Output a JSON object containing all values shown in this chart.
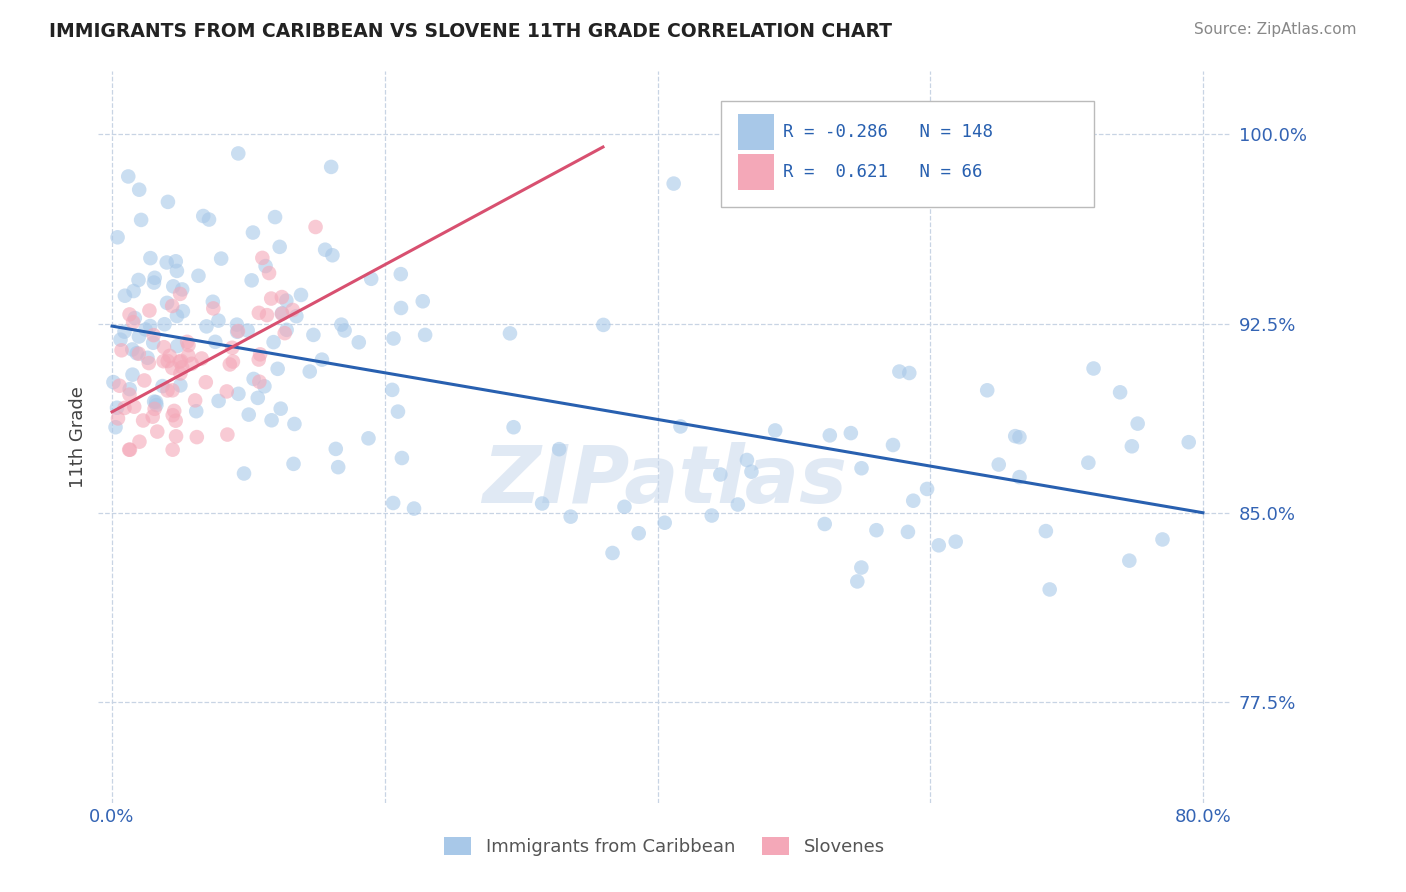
{
  "title": "IMMIGRANTS FROM CARIBBEAN VS SLOVENE 11TH GRADE CORRELATION CHART",
  "source": "Source: ZipAtlas.com",
  "ylabel": "11th Grade",
  "ytick_labels": [
    "100.0%",
    "92.5%",
    "85.0%",
    "77.5%"
  ],
  "ytick_values": [
    1.0,
    0.925,
    0.85,
    0.775
  ],
  "xtick_labels": [
    "0.0%",
    "",
    "",
    "",
    "80.0%"
  ],
  "xtick_values": [
    0.0,
    0.2,
    0.4,
    0.6,
    0.8
  ],
  "xlim": [
    -0.01,
    0.82
  ],
  "ylim": [
    0.735,
    1.025
  ],
  "blue_R": -0.286,
  "blue_N": 148,
  "pink_R": 0.621,
  "pink_N": 66,
  "blue_color": "#a8c8e8",
  "pink_color": "#f4a8b8",
  "blue_line_color": "#2860b0",
  "pink_line_color": "#d85070",
  "legend_label_blue": "Immigrants from Caribbean",
  "legend_label_pink": "Slovenes",
  "watermark": "ZIPatlas",
  "background_color": "#ffffff",
  "grid_color": "#c8d4e4",
  "blue_trendline_x0": 0.0,
  "blue_trendline_y0": 0.924,
  "blue_trendline_x1": 0.8,
  "blue_trendline_y1": 0.85,
  "pink_trendline_x0": 0.0,
  "pink_trendline_y0": 0.89,
  "pink_trendline_x1": 0.36,
  "pink_trendline_y1": 0.995,
  "marker_size": 110,
  "marker_alpha": 0.6,
  "seed": 12345
}
